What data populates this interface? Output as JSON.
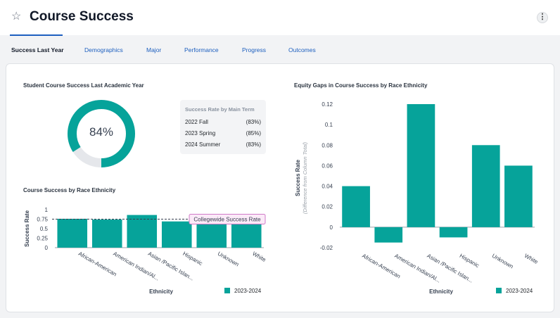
{
  "header": {
    "title": "Course Success",
    "star_icon": "star-outline-icon",
    "menu_icon": "kebab-menu-icon"
  },
  "tabs": [
    {
      "label": "Success Last Year",
      "active": true
    },
    {
      "label": "Demographics"
    },
    {
      "label": "Major"
    },
    {
      "label": "Performance"
    },
    {
      "label": "Progress"
    },
    {
      "label": "Outcomes"
    }
  ],
  "colors": {
    "accent": "#06a39a",
    "donut_track": "#e5e7eb",
    "link": "#1d5fbf",
    "callout_border": "#d07ac8",
    "callout_bg": "#fbeaf8"
  },
  "success_panel": {
    "title": "Student Course Success Last Academic Year",
    "rate_label": "84%",
    "rate_fraction": 0.84,
    "terms_title": "Success Rate by Main Term",
    "terms": [
      {
        "term": "2022 Fall",
        "value": "(83%)"
      },
      {
        "term": "2023 Spring",
        "value": "(85%)"
      },
      {
        "term": "2024 Summer",
        "value": "(83%)"
      }
    ]
  },
  "legend": {
    "label": "2023-2024"
  },
  "chart_data": [
    {
      "type": "bar",
      "title": "Course Success by Race Ethnicity",
      "xlabel": "Ethnicity",
      "ylabel": "Success Rate",
      "categories": [
        "African-American",
        "American Indian/Al...",
        "Asian /Pacific Islan...",
        "Hispanic",
        "Unknown",
        "White"
      ],
      "series": [
        {
          "name": "2023-2024",
          "values": [
            0.76,
            0.74,
            0.86,
            0.69,
            0.62,
            0.67
          ]
        }
      ],
      "ylim": [
        0,
        1
      ],
      "yticks": [
        "1",
        "0.75",
        "0.5",
        "0.25",
        "0"
      ],
      "reference_line": {
        "label": "Collegewide Success Rate",
        "value": 0.75
      },
      "grid": false,
      "legend": "bottom-right"
    },
    {
      "type": "bar",
      "title": "Equity Gaps in Course Success by Race Ethnicity",
      "xlabel": "Ethnicity",
      "ylabel": "Success Rate",
      "ylabel_sub": "(Difference from Column Total)",
      "categories": [
        "African-American",
        "American Indian/Al...",
        "Asian /Pacific Islan...",
        "Hispanic",
        "Unknown",
        "White"
      ],
      "series": [
        {
          "name": "2023-2024",
          "values": [
            0.04,
            -0.015,
            0.12,
            -0.01,
            0.08,
            0.06
          ]
        }
      ],
      "ylim": [
        -0.02,
        0.12
      ],
      "yticks": [
        "0.12",
        "0.1",
        "0.08",
        "0.06",
        "0.04",
        "0.02",
        "0",
        "-0.02"
      ],
      "grid": false,
      "legend": "bottom-right"
    }
  ]
}
